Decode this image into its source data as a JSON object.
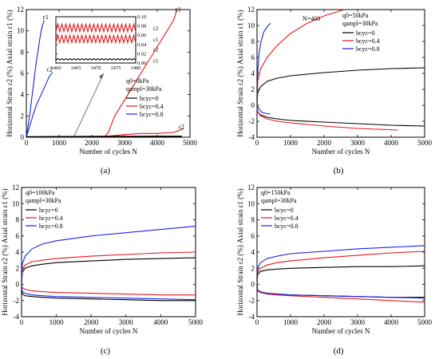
{
  "colors": {
    "bcyc0": "#000000",
    "bcyc04": "#e8161b",
    "bcyc08": "#1a22e8"
  },
  "chart_data": [
    {
      "type": "line",
      "panel": "(a)",
      "xlabel": "Number of cycles N",
      "ylabel": "Horizontal Strain ε2 (%)  Axial strain ε1 (%)",
      "xlim": [
        0,
        5000
      ],
      "ylim": [
        0,
        12
      ],
      "xticks": [
        0,
        1000,
        2000,
        3000,
        4000,
        5000
      ],
      "yticks": [
        0,
        2,
        4,
        6,
        8,
        10,
        12
      ],
      "annotations": [
        "q0=0kPa",
        "qampl=30kPa"
      ],
      "point_labels": [
        {
          "text": "ε1",
          "x": 500,
          "y": 11.1
        },
        {
          "text": "ε2",
          "x": 620,
          "y": 6.2
        },
        {
          "text": "ε1",
          "x": 4550,
          "y": 11.8
        },
        {
          "text": "ε2",
          "x": 4650,
          "y": 0.8
        }
      ],
      "legend": {
        "position": "right",
        "entries": [
          {
            "label": "bcyc=0",
            "color": "#000000"
          },
          {
            "label": "bcyc=0.4",
            "color": "#e8161b"
          },
          {
            "label": "bcyc=0.8",
            "color": "#1a22e8"
          }
        ]
      },
      "series": [
        {
          "name": "bcyc=0.8 ε1",
          "color": "#1a22e8",
          "x": [
            0,
            100,
            200,
            300,
            350,
            400,
            450,
            500,
            550
          ],
          "y": [
            0,
            2,
            4.5,
            7,
            8,
            9,
            10,
            10.6,
            11
          ]
        },
        {
          "name": "bcyc=0.8 ε2",
          "color": "#1a22e8",
          "x": [
            0,
            150,
            300,
            450,
            600,
            700,
            800
          ],
          "y": [
            0,
            1.5,
            3,
            4,
            5,
            5.7,
            6.1
          ]
        },
        {
          "name": "bcyc=0.4 ε1",
          "color": "#e8161b",
          "x": [
            0,
            1000,
            2000,
            2400,
            2500,
            2700,
            3000,
            3400,
            3800,
            4200,
            4500,
            4600
          ],
          "y": [
            0,
            0.05,
            0.08,
            0.1,
            0.4,
            2,
            3.5,
            5.5,
            7.5,
            9.5,
            11,
            12
          ]
        },
        {
          "name": "bcyc=0.4 ε2",
          "color": "#e8161b",
          "x": [
            0,
            1000,
            2000,
            2500,
            3000,
            3500,
            4000,
            4500,
            4650,
            4800
          ],
          "y": [
            0,
            0.05,
            0.05,
            0.1,
            0.25,
            0.35,
            0.35,
            0.45,
            0.6,
            0.8
          ]
        },
        {
          "name": "bcyc=0 ε1",
          "color": "#000000",
          "x": [
            0,
            1000,
            2000,
            3000,
            4000,
            4750
          ],
          "y": [
            0.05,
            0.07,
            0.08,
            0.09,
            0.1,
            0.1
          ]
        },
        {
          "name": "bcyc=0 ε2",
          "color": "#000000",
          "x": [
            0,
            1000,
            2000,
            3000,
            4000,
            4750
          ],
          "y": [
            0.02,
            0.03,
            0.03,
            0.04,
            0.04,
            0.05
          ]
        }
      ],
      "inset": {
        "xlim": [
          1460,
          1480
        ],
        "ylim": [
          0,
          0.1
        ],
        "xticks": [
          1460,
          1465,
          1470,
          1475,
          1480
        ],
        "yticks": [
          0.0,
          0.02,
          0.04,
          0.06,
          0.08,
          0.1
        ],
        "point_labels": [
          {
            "text": "ε2",
            "x": 1480,
            "y": 0.076
          },
          {
            "text": "ε1",
            "x": 1480,
            "y": 0.052
          },
          {
            "text": "ε2",
            "x": 1480,
            "y": 0.03
          },
          {
            "text": "ε1",
            "x": 1480,
            "y": 0.006
          }
        ],
        "series": [
          {
            "name": "bcyc=0.4 ε2 cyclic",
            "color": "#e8161b",
            "base": 0.076,
            "amp": 0.008,
            "cycles": 20
          },
          {
            "name": "bcyc=0.4 ε1 cyclic",
            "color": "#e8161b",
            "base": 0.052,
            "amp": 0.008,
            "cycles": 20
          },
          {
            "name": "bcyc=0 ε2 cyclic",
            "color": "#000000",
            "base": 0.008,
            "amp": 0.0015,
            "cycles": 20
          }
        ]
      }
    },
    {
      "type": "line",
      "panel": "(b)",
      "xlabel": "Number of cycles N",
      "ylabel": "Horizontal Strain ε2 (%)  Axial strain ε1 (%)",
      "xlim": [
        0,
        5000
      ],
      "ylim": [
        -4,
        12
      ],
      "xticks": [
        0,
        1000,
        2000,
        3000,
        4000,
        5000
      ],
      "yticks": [
        -4,
        -2,
        0,
        2,
        4,
        6,
        8,
        10,
        12
      ],
      "annotations": [
        "q0=50kPa",
        "qampl=30kPa",
        "N=400"
      ],
      "legend": {
        "position": "right",
        "entries": [
          {
            "label": "bcyc=0",
            "color": "#000000"
          },
          {
            "label": "bcyc=0.4",
            "color": "#e8161b"
          },
          {
            "label": "bcyc=0.8",
            "color": "#1a22e8"
          }
        ]
      },
      "series": [
        {
          "name": "bcyc=0 ε1",
          "color": "#000000",
          "x": [
            0,
            20,
            100,
            300,
            600,
            1000,
            2000,
            3000,
            4000,
            5000
          ],
          "y": [
            0,
            1.5,
            2.3,
            3,
            3.4,
            3.7,
            4.1,
            4.4,
            4.6,
            4.7
          ]
        },
        {
          "name": "bcyc=0 ε2",
          "color": "#000000",
          "x": [
            0,
            20,
            100,
            300,
            600,
            1000,
            2000,
            3000,
            4000,
            5000
          ],
          "y": [
            0,
            -0.8,
            -1.2,
            -1.5,
            -1.7,
            -1.9,
            -2.1,
            -2.3,
            -2.5,
            -2.6
          ]
        },
        {
          "name": "bcyc=0.4 ε1",
          "color": "#e8161b",
          "x": [
            0,
            20,
            100,
            300,
            600,
            1000,
            1500,
            2000,
            2600
          ],
          "y": [
            0,
            3,
            4.5,
            6,
            7.5,
            9,
            10.3,
            11.2,
            12
          ]
        },
        {
          "name": "bcyc=0.4 ε2",
          "color": "#e8161b",
          "x": [
            0,
            20,
            100,
            300,
            600,
            1000,
            2000,
            3000,
            4200
          ],
          "y": [
            0,
            -0.8,
            -1.3,
            -1.7,
            -2,
            -2.2,
            -2.6,
            -2.9,
            -3.1
          ]
        },
        {
          "name": "bcyc=0.8 ε1",
          "color": "#1a22e8",
          "x": [
            0,
            20,
            60,
            120,
            200,
            300,
            400
          ],
          "y": [
            0,
            4,
            6.5,
            8,
            9.2,
            9.8,
            10.3
          ]
        },
        {
          "name": "bcyc=0.8 ε2",
          "color": "#1a22e8",
          "x": [
            0,
            30,
            80,
            150,
            250,
            400
          ],
          "y": [
            0,
            -0.2,
            -0.6,
            -0.9,
            -1,
            -1.1
          ]
        }
      ]
    },
    {
      "type": "line",
      "panel": "(c)",
      "xlabel": "Number of cycles N",
      "ylabel": "Horizontal Strain ε2 (%)  Axial strain ε1 (%)",
      "xlim": [
        0,
        5000
      ],
      "ylim": [
        -4,
        12
      ],
      "xticks": [
        0,
        1000,
        2000,
        3000,
        4000,
        5000
      ],
      "yticks": [
        -4,
        -2,
        0,
        2,
        4,
        6,
        8,
        10,
        12
      ],
      "annotations": [
        "q0=100kPa",
        "qampl=30kPa"
      ],
      "legend": {
        "position": "top-left",
        "entries": [
          {
            "label": "bcyc=0",
            "color": "#000000"
          },
          {
            "label": "bcyc=0.4",
            "color": "#e8161b"
          },
          {
            "label": "bcyc=0.8",
            "color": "#1a22e8"
          }
        ]
      },
      "series": [
        {
          "name": "bcyc=0 ε1",
          "color": "#000000",
          "x": [
            0,
            20,
            100,
            300,
            600,
            1000,
            2000,
            3000,
            4000,
            5000
          ],
          "y": [
            0,
            1.5,
            2,
            2.3,
            2.5,
            2.7,
            2.9,
            3.1,
            3.2,
            3.3
          ]
        },
        {
          "name": "bcyc=0 ε2",
          "color": "#000000",
          "x": [
            0,
            20,
            100,
            300,
            600,
            1000,
            2000,
            3000,
            4000,
            5000
          ],
          "y": [
            0,
            -1.2,
            -1.4,
            -1.5,
            -1.6,
            -1.7,
            -1.8,
            -1.9,
            -2,
            -2
          ]
        },
        {
          "name": "bcyc=0.4 ε1",
          "color": "#e8161b",
          "x": [
            0,
            20,
            100,
            300,
            600,
            1000,
            2000,
            3000,
            4000,
            5000
          ],
          "y": [
            0,
            1.8,
            2.4,
            2.8,
            3,
            3.2,
            3.5,
            3.7,
            3.9,
            4
          ]
        },
        {
          "name": "bcyc=0.4 ε2",
          "color": "#e8161b",
          "x": [
            0,
            20,
            100,
            300,
            600,
            1000,
            2000,
            3000,
            4000,
            5000
          ],
          "y": [
            0,
            -0.4,
            -0.6,
            -0.8,
            -0.9,
            -1,
            -1.1,
            -1.2,
            -1.3,
            -1.3
          ]
        },
        {
          "name": "bcyc=0.8 ε1",
          "color": "#1a22e8",
          "x": [
            0,
            20,
            100,
            300,
            600,
            1000,
            2000,
            3000,
            4000,
            5000
          ],
          "y": [
            0,
            2.5,
            3.5,
            4.4,
            5,
            5.4,
            6,
            6.4,
            6.8,
            7.2
          ]
        },
        {
          "name": "bcyc=0.8 ε2",
          "color": "#1a22e8",
          "x": [
            0,
            20,
            100,
            300,
            600,
            1000,
            2000,
            3000,
            4000,
            5000
          ],
          "y": [
            0,
            -0.9,
            -1.1,
            -1.3,
            -1.4,
            -1.5,
            -1.6,
            -1.7,
            -1.8,
            -1.9
          ]
        }
      ]
    },
    {
      "type": "line",
      "panel": "(d)",
      "xlabel": "Number of cycles N",
      "ylabel": "Horizontal Strain ε2 (%)  Axial strain ε1 (%)",
      "xlim": [
        0,
        5000
      ],
      "ylim": [
        -4,
        12
      ],
      "xticks": [
        0,
        1000,
        2000,
        3000,
        4000,
        5000
      ],
      "yticks": [
        -4,
        -2,
        0,
        2,
        4,
        6,
        8,
        10,
        12
      ],
      "annotations": [
        "q0=150kPa",
        "qampl=30kPa"
      ],
      "legend": {
        "position": "top-left",
        "entries": [
          {
            "label": "bcyc=0",
            "color": "#000000"
          },
          {
            "label": "bcyc=0.4",
            "color": "#e8161b"
          },
          {
            "label": "bcyc=0.8",
            "color": "#1a22e8"
          }
        ]
      },
      "series": [
        {
          "name": "bcyc=0 ε1",
          "color": "#000000",
          "x": [
            0,
            20,
            100,
            300,
            600,
            1000,
            2000,
            3000,
            4000,
            5000
          ],
          "y": [
            0,
            1.2,
            1.6,
            1.8,
            1.9,
            2,
            2.1,
            2.2,
            2.2,
            2.3
          ]
        },
        {
          "name": "bcyc=0 ε2",
          "color": "#000000",
          "x": [
            0,
            20,
            100,
            300,
            600,
            1000,
            2000,
            3000,
            4000,
            5000
          ],
          "y": [
            0,
            -0.8,
            -1,
            -1.1,
            -1.2,
            -1.3,
            -1.4,
            -1.5,
            -1.6,
            -1.6
          ]
        },
        {
          "name": "bcyc=0.4 ε1",
          "color": "#e8161b",
          "x": [
            0,
            20,
            100,
            300,
            600,
            1000,
            2000,
            3000,
            4000,
            5000
          ],
          "y": [
            0,
            1.5,
            2,
            2.4,
            2.7,
            2.9,
            3.3,
            3.6,
            3.9,
            4.1
          ]
        },
        {
          "name": "bcyc=0.4 ε2",
          "color": "#e8161b",
          "x": [
            0,
            20,
            100,
            300,
            600,
            1000,
            2000,
            3000,
            4000,
            5000
          ],
          "y": [
            0,
            -0.8,
            -1,
            -1.2,
            -1.3,
            -1.4,
            -1.6,
            -1.8,
            -2,
            -2.2
          ]
        },
        {
          "name": "bcyc=0.8 ε1",
          "color": "#1a22e8",
          "x": [
            0,
            20,
            100,
            300,
            600,
            1000,
            2000,
            3000,
            4000,
            5000
          ],
          "y": [
            0,
            2,
            2.7,
            3.2,
            3.5,
            3.8,
            4.1,
            4.4,
            4.6,
            4.8
          ]
        },
        {
          "name": "bcyc=0.8 ε2",
          "color": "#1a22e8",
          "x": [
            0,
            20,
            100,
            300,
            600,
            1000,
            2000,
            3000,
            4000,
            5000
          ],
          "y": [
            0,
            -0.7,
            -0.9,
            -1.1,
            -1.2,
            -1.3,
            -1.4,
            -1.5,
            -1.6,
            -1.7
          ]
        }
      ]
    }
  ]
}
